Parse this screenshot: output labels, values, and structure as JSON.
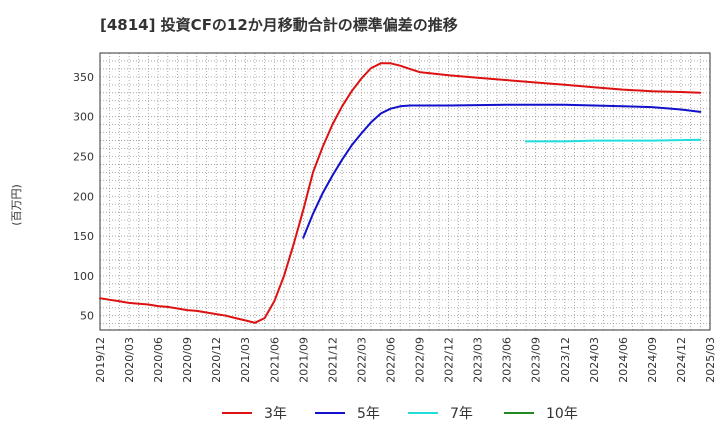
{
  "chart_data": {
    "type": "line",
    "title": "[4814]  投資CFの12か月移動合計の標準偏差の推移",
    "ylabel": "(百万円)",
    "xlabel": "",
    "ylim": [
      32,
      380
    ],
    "yticks": [
      50,
      100,
      150,
      200,
      250,
      300,
      350
    ],
    "x_tick_labels": [
      "2019/12",
      "2020/03",
      "2020/06",
      "2020/09",
      "2020/12",
      "2021/03",
      "2021/06",
      "2021/09",
      "2021/12",
      "2022/03",
      "2022/06",
      "2022/09",
      "2022/12",
      "2023/03",
      "2023/06",
      "2023/09",
      "2023/12",
      "2024/03",
      "2024/06",
      "2024/09",
      "2024/12",
      "2025/03"
    ],
    "grid": true,
    "legend_position": "bottom",
    "colors": {
      "3年": "#dd1111",
      "5年": "#1111cc",
      "7年": "#22dddd",
      "10年": "#228822"
    },
    "series": [
      {
        "name": "3年",
        "color": "#dd1111",
        "points": [
          [
            "2019/12",
            72
          ],
          [
            "2020/01",
            70
          ],
          [
            "2020/02",
            68
          ],
          [
            "2020/03",
            66
          ],
          [
            "2020/04",
            65
          ],
          [
            "2020/05",
            64
          ],
          [
            "2020/06",
            62
          ],
          [
            "2020/07",
            61
          ],
          [
            "2020/08",
            59
          ],
          [
            "2020/09",
            57
          ],
          [
            "2020/10",
            56
          ],
          [
            "2020/11",
            54
          ],
          [
            "2020/12",
            52
          ],
          [
            "2021/01",
            50
          ],
          [
            "2021/02",
            47
          ],
          [
            "2021/03",
            44
          ],
          [
            "2021/04",
            41
          ],
          [
            "2021/05",
            47
          ],
          [
            "2021/06",
            68
          ],
          [
            "2021/07",
            100
          ],
          [
            "2021/08",
            140
          ],
          [
            "2021/09",
            183
          ],
          [
            "2021/10",
            230
          ],
          [
            "2021/11",
            262
          ],
          [
            "2021/12",
            290
          ],
          [
            "2022/01",
            313
          ],
          [
            "2022/02",
            332
          ],
          [
            "2022/03",
            348
          ],
          [
            "2022/04",
            361
          ],
          [
            "2022/05",
            367
          ],
          [
            "2022/06",
            367
          ],
          [
            "2022/07",
            364
          ],
          [
            "2022/08",
            360
          ],
          [
            "2022/09",
            356
          ],
          [
            "2022/12",
            352
          ],
          [
            "2023/03",
            349
          ],
          [
            "2023/06",
            346
          ],
          [
            "2023/09",
            343
          ],
          [
            "2023/12",
            340
          ],
          [
            "2024/03",
            337
          ],
          [
            "2024/06",
            334
          ],
          [
            "2024/09",
            332
          ],
          [
            "2024/12",
            331
          ],
          [
            "2025/02",
            330
          ]
        ]
      },
      {
        "name": "5年",
        "color": "#1111cc",
        "points": [
          [
            "2021/09",
            148
          ],
          [
            "2021/10",
            178
          ],
          [
            "2021/11",
            204
          ],
          [
            "2021/12",
            226
          ],
          [
            "2022/01",
            246
          ],
          [
            "2022/02",
            264
          ],
          [
            "2022/03",
            279
          ],
          [
            "2022/04",
            293
          ],
          [
            "2022/05",
            304
          ],
          [
            "2022/06",
            310
          ],
          [
            "2022/07",
            313
          ],
          [
            "2022/08",
            314
          ],
          [
            "2022/12",
            314
          ],
          [
            "2023/06",
            315
          ],
          [
            "2023/12",
            315
          ],
          [
            "2024/06",
            313
          ],
          [
            "2024/09",
            312
          ],
          [
            "2024/12",
            309
          ],
          [
            "2025/02",
            306
          ]
        ]
      },
      {
        "name": "7年",
        "color": "#22dddd",
        "points": [
          [
            "2023/08",
            269
          ],
          [
            "2023/12",
            269
          ],
          [
            "2024/03",
            270
          ],
          [
            "2024/06",
            270
          ],
          [
            "2024/09",
            270
          ],
          [
            "2025/02",
            271
          ]
        ]
      },
      {
        "name": "10年",
        "color": "#228822",
        "points": []
      }
    ]
  }
}
